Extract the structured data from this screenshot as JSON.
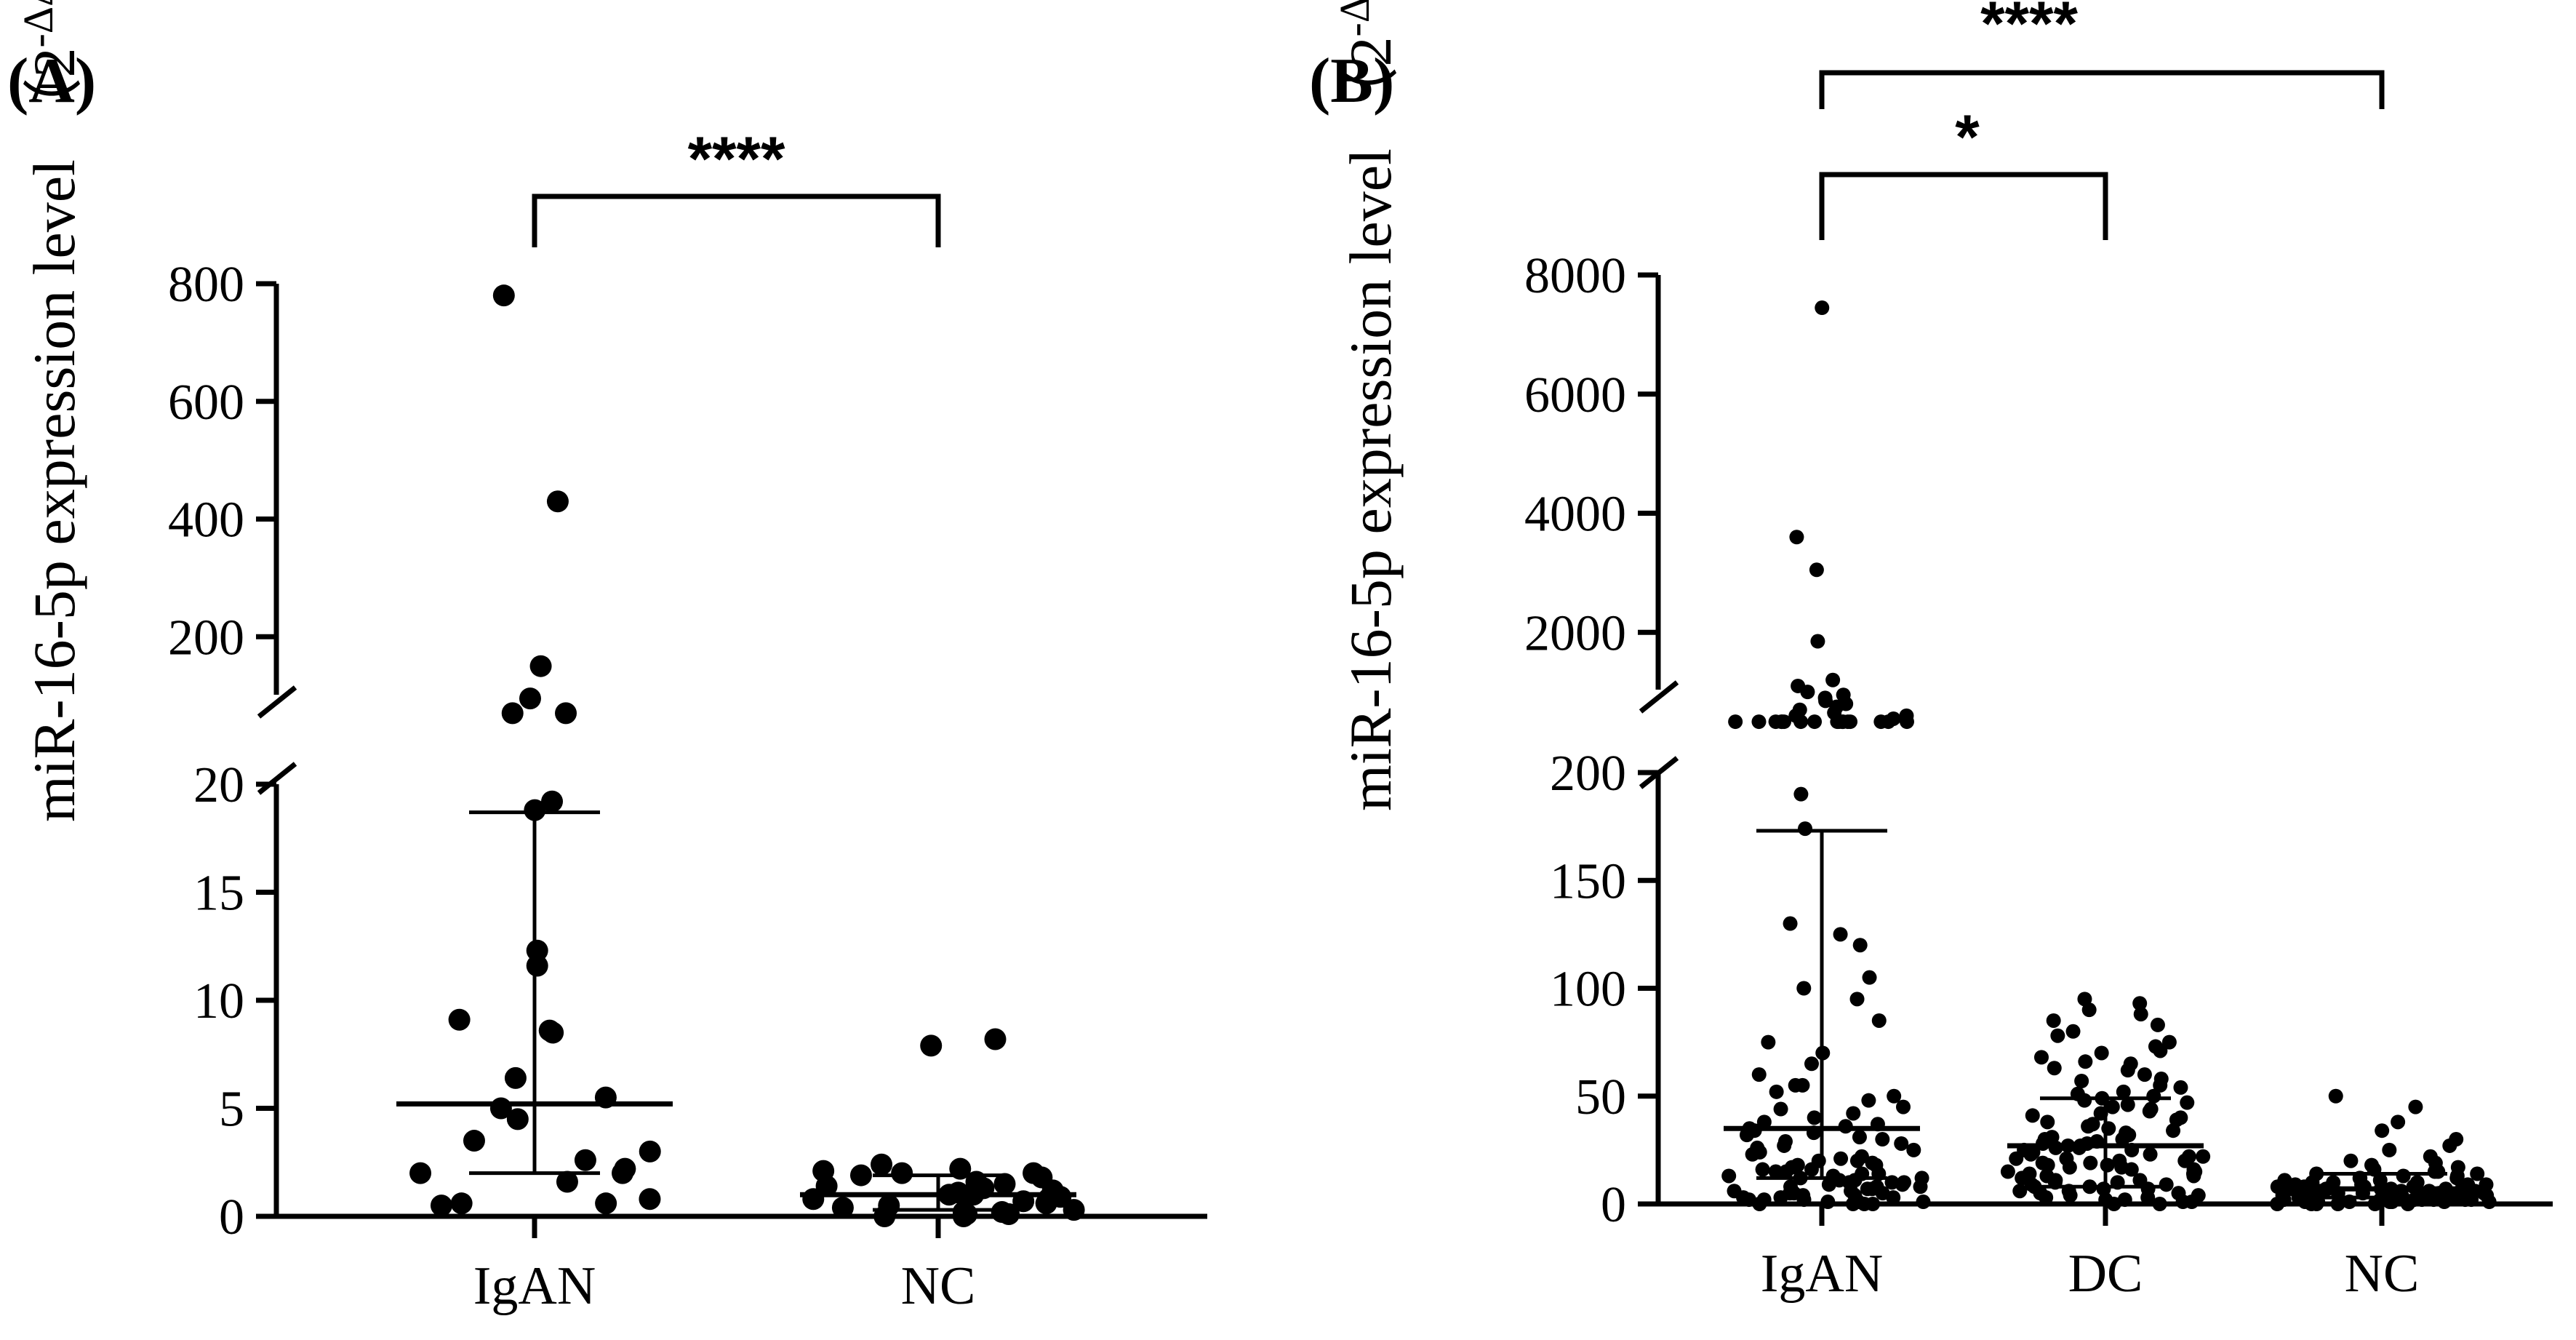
{
  "chart_data": [
    {
      "type": "scatter",
      "panel_label": "(A)",
      "ylabel": "miR-16-5p expression level",
      "ylabel_unit": {
        "base": "（2",
        "exponent": "-ΔΔCt",
        "close": "）"
      },
      "categories": [
        "IgAN",
        "NC"
      ],
      "axis_break": true,
      "lower_axis": {
        "ylim": [
          0,
          20
        ],
        "ticks": [
          "0",
          "5",
          "10",
          "15",
          "20"
        ]
      },
      "upper_axis": {
        "ylim": [
          0,
          800
        ],
        "ticks": [
          "200",
          "400",
          "600",
          "800"
        ]
      },
      "significance": [
        {
          "from": "IgAN",
          "to": "NC",
          "label": "****"
        }
      ],
      "series": [
        {
          "name": "IgAN",
          "median": 5.2,
          "q1": 2.0,
          "q3": 18.7,
          "values": [
            780,
            430,
            150,
            95,
            70,
            70,
            19.2,
            18.8,
            12.3,
            11.6,
            9.1,
            8.6,
            8.5,
            6.4,
            5.5,
            5.0,
            4.5,
            3.5,
            3.0,
            2.6,
            2.2,
            2.0,
            2.0,
            1.6,
            0.8,
            0.6,
            0.6,
            0.5
          ]
        },
        {
          "name": "NC",
          "median": 1.0,
          "q1": 0.3,
          "q3": 1.9,
          "values": [
            8.2,
            7.9,
            2.4,
            2.2,
            2.1,
            2.0,
            2.0,
            1.9,
            1.8,
            1.6,
            1.5,
            1.4,
            1.3,
            1.2,
            1.1,
            1.0,
            1.0,
            1.0,
            0.9,
            0.8,
            0.8,
            0.7,
            0.6,
            0.5,
            0.4,
            0.3,
            0.2,
            0.2,
            0.1,
            0.1,
            0.0,
            0.0
          ]
        }
      ]
    },
    {
      "type": "scatter",
      "panel_label": "(B)",
      "ylabel": "miR-16-5p expression level",
      "ylabel_unit": {
        "base": "（2",
        "exponent": "-ΔΔCt",
        "close": "）"
      },
      "categories": [
        "IgAN",
        "DC",
        "NC"
      ],
      "axis_break": true,
      "lower_axis": {
        "ylim": [
          0,
          200
        ],
        "ticks": [
          "0",
          "50",
          "100",
          "150",
          "200"
        ]
      },
      "upper_axis": {
        "ylim": [
          0,
          8000
        ],
        "ticks": [
          "2000",
          "4000",
          "6000",
          "8000"
        ]
      },
      "significance": [
        {
          "from": "IgAN",
          "to": "NC",
          "label": "****"
        },
        {
          "from": "IgAN",
          "to": "DC",
          "label": "*"
        }
      ],
      "series": [
        {
          "name": "IgAN",
          "median": 35,
          "q1": 12,
          "q3": 173,
          "values_upper": [
            7450,
            3600,
            3050,
            1850,
            1200,
            1100,
            1000,
            950,
            900,
            850,
            800,
            750,
            700,
            650,
            600,
            600,
            550,
            500,
            500,
            500,
            500,
            500,
            500,
            500,
            500,
            500,
            500,
            500,
            500,
            500,
            500,
            500,
            500,
            500
          ],
          "values": [
            190,
            174,
            130,
            125,
            120,
            105,
            100,
            95,
            85,
            75,
            70,
            65,
            60,
            55,
            55,
            52,
            50,
            48,
            45,
            44,
            42,
            40,
            38,
            37,
            36,
            35,
            34,
            33,
            32,
            31,
            30,
            29,
            28,
            27,
            26,
            25,
            24,
            23,
            22,
            21,
            20,
            20,
            19,
            18,
            18,
            17,
            16,
            16,
            15,
            15,
            14,
            14,
            13,
            13,
            12,
            12,
            11,
            11,
            10,
            10,
            10,
            9,
            9,
            8,
            8,
            8,
            7,
            7,
            6,
            6,
            5,
            5,
            5,
            4,
            4,
            3,
            3,
            3,
            2,
            2,
            2,
            1,
            1,
            1,
            0,
            0,
            0,
            0
          ]
        },
        {
          "name": "DC",
          "median": 27,
          "q1": 8,
          "q3": 49,
          "values": [
            95,
            93,
            90,
            88,
            85,
            83,
            80,
            78,
            75,
            73,
            71,
            70,
            68,
            66,
            65,
            63,
            62,
            60,
            58,
            57,
            55,
            54,
            52,
            51,
            50,
            49,
            48,
            47,
            46,
            45,
            44,
            43,
            42,
            41,
            40,
            39,
            38,
            37,
            36,
            35,
            34,
            33,
            32,
            31,
            30,
            30,
            29,
            28,
            28,
            27,
            27,
            26,
            26,
            25,
            25,
            24,
            24,
            23,
            23,
            22,
            22,
            21,
            21,
            20,
            20,
            19,
            19,
            18,
            18,
            17,
            17,
            16,
            16,
            15,
            15,
            14,
            14,
            13,
            13,
            12,
            12,
            11,
            11,
            10,
            10,
            9,
            9,
            8,
            8,
            7,
            7,
            6,
            6,
            5,
            5,
            4,
            4,
            3,
            3,
            2,
            2,
            1,
            1,
            0,
            0
          ]
        },
        {
          "name": "NC",
          "median": 7,
          "q1": 3,
          "q3": 14,
          "values": [
            50,
            45,
            38,
            34,
            30,
            27,
            25,
            22,
            20,
            19,
            18,
            17,
            16,
            15,
            15,
            14,
            14,
            13,
            13,
            12,
            12,
            12,
            11,
            11,
            10,
            10,
            10,
            9,
            9,
            9,
            9,
            8,
            8,
            8,
            8,
            8,
            7,
            7,
            7,
            7,
            7,
            7,
            6,
            6,
            6,
            6,
            6,
            6,
            6,
            5,
            5,
            5,
            5,
            5,
            5,
            5,
            5,
            4,
            4,
            4,
            4,
            4,
            4,
            4,
            4,
            3,
            3,
            3,
            3,
            3,
            3,
            3,
            3,
            2,
            2,
            2,
            2,
            2,
            2,
            2,
            2,
            1,
            1,
            1,
            1,
            1,
            1,
            1,
            0,
            0,
            0,
            0,
            0,
            0
          ]
        }
      ]
    }
  ]
}
